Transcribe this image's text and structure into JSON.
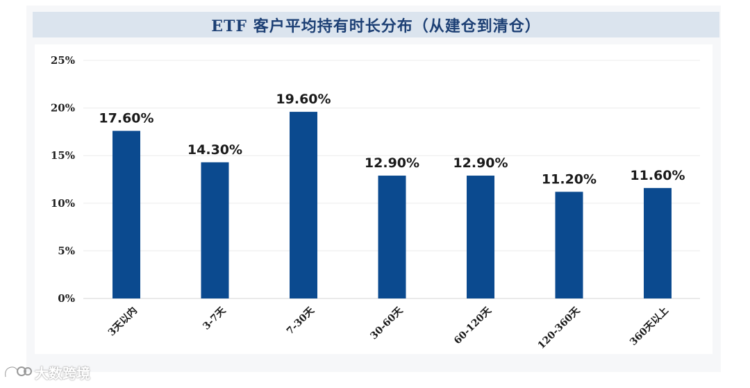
{
  "chart_data": {
    "type": "bar",
    "title": "ETF 客户平均持有时长分布（从建仓到清仓）",
    "categories": [
      "3天以内",
      "3-7天",
      "7-30天",
      "30-60天",
      "60-120天",
      "120-360天",
      "360天以上"
    ],
    "values": [
      17.6,
      14.3,
      19.6,
      12.9,
      12.9,
      11.2,
      11.6
    ],
    "data_labels": [
      "17.60%",
      "14.30%",
      "19.60%",
      "12.90%",
      "12.90%",
      "11.20%",
      "11.60%"
    ],
    "y_ticks": [
      "0%",
      "5%",
      "10%",
      "15%",
      "20%",
      "25%"
    ],
    "ylim": [
      0,
      25
    ],
    "xlabel": "",
    "ylabel": "",
    "grid": true,
    "bar_color": "#0b4a8f"
  },
  "watermark": {
    "text": "大数跨境",
    "icon": "brand-logo-icon"
  }
}
